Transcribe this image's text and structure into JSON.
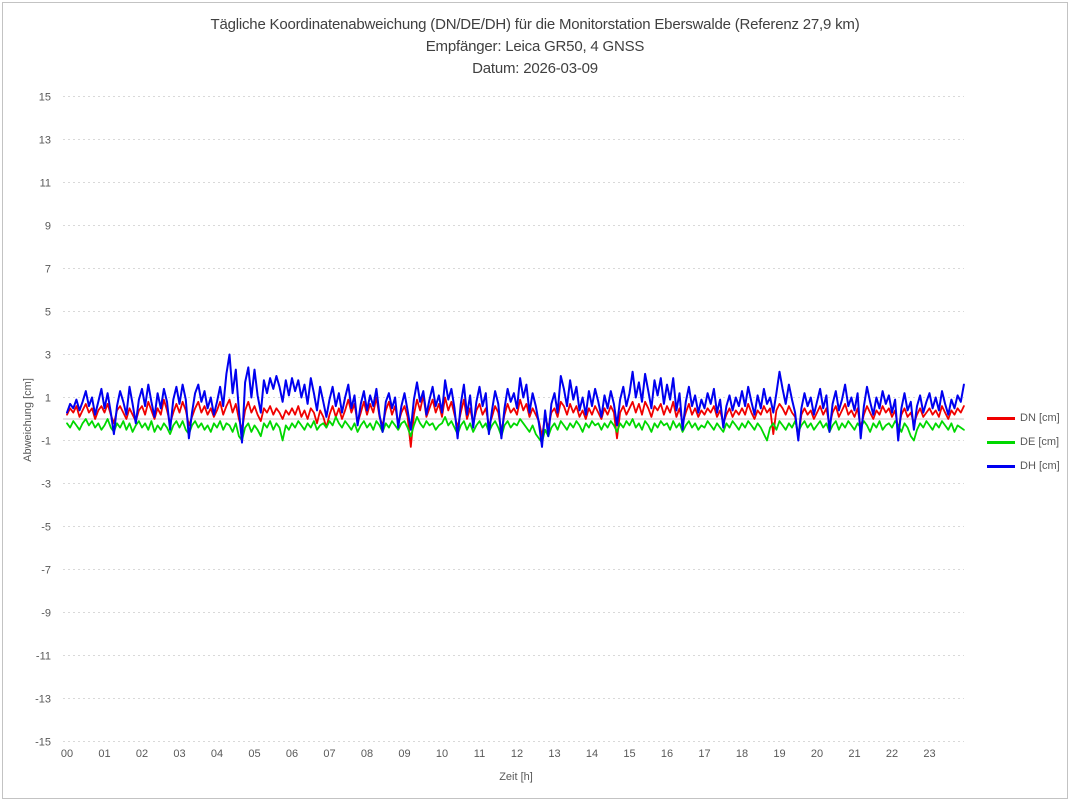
{
  "window": {
    "background": "#ffffff",
    "border_color": "#c3c3c3"
  },
  "colors": {
    "grid": "#d9d9d9",
    "zero_line": "#c9c9c9",
    "tick_text": "#595959",
    "title_text": "#404040"
  },
  "chart_data": {
    "type": "line",
    "title": "Tägliche Koordinatenabweichung (DN/DE/DH) für die Monitorstation Eberswalde (Referenz 27,9 km)",
    "subtitle": "Empfänger: Leica GR50, 4 GNSS",
    "date_line": "Datum: 2026-03-09",
    "xlabel": "Zeit [h]",
    "ylabel": "Abweichung [cm]",
    "xlim": [
      0,
      24
    ],
    "ylim": [
      -15,
      15
    ],
    "y_ticks": [
      15,
      13,
      11,
      9,
      7,
      5,
      3,
      1,
      -1,
      -3,
      -5,
      -7,
      -9,
      -11,
      -13,
      -15
    ],
    "x_ticks": [
      "00",
      "01",
      "02",
      "03",
      "04",
      "05",
      "06",
      "07",
      "08",
      "09",
      "10",
      "11",
      "12",
      "13",
      "14",
      "15",
      "16",
      "17",
      "18",
      "19",
      "20",
      "21",
      "22",
      "23"
    ],
    "grid": "horizontal dashed light-gray lines at odd values, solid light-gray line at 0, no vertical gridlines",
    "legend_position": "right-center, no border",
    "sample_interval_minutes": 5,
    "x_start_hour": 0,
    "series": [
      {
        "id": "dn",
        "name": "DN [cm]",
        "color": "#f00000",
        "width": 1.8,
        "values": [
          0.2,
          0.5,
          0.3,
          0.6,
          0.1,
          0.4,
          0.7,
          0.3,
          0.5,
          0.0,
          0.4,
          0.6,
          0.3,
          0.7,
          0.2,
          -0.2,
          0.4,
          0.6,
          0.3,
          0.0,
          0.5,
          0.2,
          -0.1,
          0.4,
          0.6,
          0.2,
          0.8,
          0.4,
          0.0,
          0.5,
          0.2,
          0.9,
          0.4,
          -0.2,
          0.3,
          0.7,
          0.3,
          0.8,
          0.4,
          -0.3,
          0.1,
          0.5,
          0.8,
          0.3,
          0.6,
          0.2,
          0.5,
          0.1,
          0.4,
          0.8,
          0.2,
          0.6,
          0.9,
          0.3,
          0.7,
          0.0,
          -0.5,
          0.4,
          0.8,
          0.3,
          0.6,
          0.2,
          -0.1,
          0.5,
          0.3,
          0.6,
          0.2,
          0.5,
          0.3,
          0.0,
          0.4,
          0.2,
          0.5,
          0.2,
          0.6,
          0.1,
          0.4,
          0.0,
          0.5,
          0.3,
          -0.2,
          0.4,
          0.1,
          -0.4,
          0.2,
          0.6,
          0.1,
          0.5,
          0.0,
          0.4,
          0.9,
          0.3,
          0.7,
          -0.2,
          0.3,
          0.8,
          0.2,
          0.7,
          0.3,
          1.0,
          0.1,
          -0.3,
          0.4,
          0.8,
          0.2,
          0.6,
          -0.2,
          0.3,
          0.6,
          0.1,
          -1.3,
          0.2,
          0.9,
          0.4,
          1.1,
          0.1,
          0.5,
          0.9,
          0.3,
          0.7,
          0.1,
          1.0,
          0.4,
          0.8,
          0.2,
          -0.4,
          0.3,
          0.9,
          0.0,
          0.5,
          -0.2,
          0.4,
          0.7,
          0.2,
          0.5,
          -0.3,
          0.1,
          0.6,
          0.3,
          -0.6,
          0.2,
          0.7,
          0.3,
          0.5,
          0.2,
          0.9,
          0.4,
          0.7,
          0.1,
          0.5,
          0.2,
          -0.1,
          -0.8,
          0.1,
          -0.4,
          0.3,
          0.5,
          0.1,
          0.8,
          0.6,
          0.2,
          0.7,
          0.3,
          0.6,
          0.1,
          0.4,
          0.0,
          0.5,
          0.2,
          0.6,
          0.3,
          0.0,
          0.5,
          0.2,
          0.6,
          0.3,
          -0.9,
          0.3,
          0.6,
          0.2,
          0.5,
          0.8,
          0.3,
          0.7,
          0.2,
          0.8,
          0.5,
          0.1,
          0.6,
          0.4,
          0.7,
          0.2,
          0.6,
          0.3,
          0.8,
          0.1,
          0.5,
          -0.2,
          0.3,
          0.7,
          0.2,
          0.5,
          0.1,
          0.4,
          0.2,
          0.5,
          0.3,
          0.6,
          0.1,
          0.4,
          -0.2,
          0.2,
          0.5,
          0.1,
          0.4,
          0.2,
          0.5,
          0.2,
          0.7,
          0.3,
          0.0,
          0.4,
          0.2,
          0.6,
          0.3,
          0.5,
          -0.7,
          0.4,
          0.7,
          0.5,
          0.2,
          0.6,
          0.3,
          0.1,
          -0.9,
          0.2,
          0.5,
          0.2,
          0.4,
          0.0,
          0.3,
          0.6,
          0.2,
          0.5,
          -0.3,
          0.3,
          0.6,
          0.1,
          0.4,
          0.7,
          0.2,
          0.4,
          0.1,
          0.5,
          -0.4,
          0.2,
          0.6,
          0.3,
          0.0,
          0.4,
          0.2,
          0.6,
          0.3,
          0.5,
          0.1,
          0.4,
          -0.5,
          0.2,
          0.5,
          0.1,
          0.3,
          -0.2,
          0.2,
          0.5,
          0.1,
          0.3,
          0.5,
          0.2,
          0.4,
          0.1,
          0.6,
          0.3,
          0.0,
          0.4,
          0.2,
          0.5,
          0.3,
          0.6
        ]
      },
      {
        "id": "de",
        "name": "DE [cm]",
        "color": "#00d800",
        "width": 1.8,
        "values": [
          -0.2,
          -0.4,
          -0.1,
          -0.3,
          -0.5,
          -0.2,
          0.0,
          -0.3,
          -0.1,
          -0.4,
          -0.2,
          -0.5,
          -0.3,
          0.0,
          -0.4,
          -0.6,
          -0.2,
          -0.4,
          -0.1,
          -0.5,
          -0.2,
          -0.6,
          -0.3,
          -0.1,
          -0.4,
          -0.2,
          -0.5,
          -0.1,
          -0.6,
          -0.3,
          -0.5,
          -0.2,
          -0.4,
          -0.7,
          -0.3,
          -0.1,
          -0.4,
          -0.1,
          -0.5,
          -0.7,
          -0.3,
          -0.1,
          -0.4,
          -0.2,
          -0.5,
          -0.3,
          -0.6,
          -0.2,
          -0.4,
          -0.1,
          -0.5,
          -0.2,
          -0.3,
          -0.6,
          -0.2,
          -0.8,
          -1.0,
          -0.4,
          -0.2,
          -0.6,
          -0.3,
          -0.5,
          -0.8,
          -0.2,
          -0.4,
          -0.1,
          -0.5,
          -0.2,
          -0.4,
          -1.0,
          -0.3,
          -0.5,
          -0.2,
          -0.4,
          -0.1,
          -0.3,
          -0.5,
          -0.2,
          -0.4,
          -0.1,
          -0.5,
          -0.3,
          -0.2,
          -0.4,
          -0.1,
          -0.3,
          0.1,
          -0.2,
          -0.4,
          -0.1,
          -0.3,
          -0.5,
          -0.2,
          -0.6,
          -0.3,
          -0.1,
          -0.4,
          -0.2,
          -0.5,
          -0.1,
          -0.3,
          -0.6,
          -0.2,
          -0.4,
          -0.1,
          -0.3,
          -0.5,
          -0.2,
          -0.1,
          -0.4,
          -0.8,
          -0.3,
          0.1,
          -0.2,
          -0.4,
          -0.1,
          -0.3,
          -0.2,
          -0.5,
          -0.3,
          -0.2,
          0.1,
          -0.3,
          -0.1,
          -0.4,
          -0.7,
          -0.3,
          -0.1,
          -0.5,
          -0.2,
          -0.6,
          -0.3,
          -0.1,
          -0.4,
          -0.2,
          -0.6,
          -0.3,
          -0.1,
          -0.4,
          -0.8,
          -0.3,
          -0.1,
          -0.4,
          -0.2,
          -0.3,
          0.0,
          -0.2,
          -0.4,
          -0.6,
          -0.3,
          -0.7,
          -0.9,
          -1.1,
          -0.5,
          -0.8,
          -0.4,
          -0.2,
          -0.5,
          -0.1,
          -0.3,
          -0.5,
          -0.2,
          -0.4,
          -0.1,
          -0.3,
          -0.6,
          -0.2,
          -0.4,
          -0.1,
          -0.3,
          -0.2,
          -0.5,
          -0.2,
          -0.4,
          -0.1,
          -0.3,
          -0.6,
          -0.2,
          -0.4,
          -0.1,
          -0.3,
          0.0,
          -0.4,
          -0.2,
          -0.5,
          -0.1,
          -0.3,
          -0.6,
          -0.2,
          -0.4,
          -0.1,
          -0.3,
          -0.2,
          -0.5,
          -0.1,
          -0.4,
          -0.2,
          -0.6,
          -0.3,
          -0.1,
          -0.4,
          -0.2,
          -0.5,
          -0.3,
          -0.4,
          -0.1,
          -0.3,
          -0.5,
          -0.2,
          -0.4,
          -0.6,
          -0.2,
          -0.4,
          -0.1,
          -0.3,
          -0.5,
          -0.2,
          -0.4,
          -0.1,
          -0.3,
          -0.5,
          -0.2,
          -0.4,
          -0.7,
          -1.0,
          -0.4,
          -0.2,
          -0.5,
          -0.1,
          -0.3,
          -0.5,
          -0.2,
          -0.4,
          -0.1,
          -0.6,
          -0.3,
          -0.1,
          -0.4,
          -0.2,
          -0.5,
          -0.3,
          -0.1,
          -0.4,
          -0.2,
          -0.6,
          -0.3,
          -0.1,
          -0.5,
          -0.2,
          -0.4,
          -0.1,
          -0.3,
          -0.5,
          -0.2,
          -0.4,
          -0.1,
          -0.3,
          -0.6,
          -0.2,
          -0.4,
          -0.1,
          -0.5,
          -0.3,
          -0.2,
          -0.4,
          -0.1,
          -0.3,
          -0.6,
          -0.2,
          -0.4,
          -0.8,
          -1.0,
          -0.5,
          -0.2,
          -0.4,
          -0.1,
          -0.3,
          -0.5,
          -0.2,
          -0.4,
          -0.1,
          -0.3,
          -0.5,
          -0.2,
          -0.6,
          -0.3,
          -0.4,
          -0.5
        ]
      },
      {
        "id": "dh",
        "name": "DH [cm]",
        "color": "#0000f0",
        "width": 2,
        "values": [
          0.3,
          0.7,
          0.5,
          0.9,
          0.4,
          0.8,
          1.3,
          0.6,
          1.0,
          0.2,
          0.8,
          1.4,
          0.5,
          1.2,
          0.3,
          -0.7,
          0.6,
          1.3,
          0.8,
          0.2,
          1.5,
          0.7,
          -0.2,
          0.9,
          1.4,
          0.6,
          1.6,
          0.8,
          0.1,
          1.2,
          0.5,
          1.4,
          0.8,
          -0.5,
          0.9,
          1.5,
          0.7,
          1.6,
          0.9,
          -0.9,
          0.3,
          1.2,
          1.6,
          0.8,
          1.3,
          0.5,
          1.0,
          0.2,
          0.8,
          1.5,
          0.6,
          2.1,
          3.0,
          1.2,
          2.3,
          0.4,
          -1.1,
          1.7,
          2.4,
          1.0,
          2.3,
          1.1,
          0.3,
          1.8,
          1.2,
          1.9,
          1.4,
          2.0,
          1.5,
          0.8,
          1.8,
          1.1,
          1.9,
          1.3,
          1.8,
          1.0,
          1.6,
          0.7,
          1.9,
          1.2,
          0.4,
          1.5,
          0.8,
          0.1,
          0.9,
          1.5,
          0.6,
          1.2,
          0.3,
          1.0,
          1.6,
          0.5,
          1.1,
          -0.3,
          0.7,
          1.3,
          0.4,
          1.1,
          0.6,
          1.4,
          0.2,
          -0.6,
          0.8,
          1.2,
          0.5,
          1.0,
          -0.4,
          0.6,
          1.2,
          0.4,
          -0.5,
          0.9,
          1.7,
          0.8,
          1.3,
          0.2,
          0.9,
          1.5,
          0.6,
          1.1,
          0.3,
          1.8,
          0.9,
          1.4,
          0.5,
          -0.9,
          0.7,
          1.6,
          0.2,
          1.1,
          -0.4,
          0.8,
          1.5,
          0.6,
          1.2,
          -0.7,
          0.4,
          1.3,
          0.7,
          -0.9,
          0.5,
          1.4,
          0.8,
          1.2,
          0.5,
          1.9,
          1.0,
          1.6,
          0.3,
          1.2,
          0.6,
          -0.2,
          -1.3,
          0.4,
          -0.8,
          0.7,
          1.2,
          0.3,
          2.0,
          1.4,
          0.6,
          1.8,
          0.9,
          1.5,
          0.4,
          1.0,
          0.2,
          1.3,
          0.6,
          1.4,
          0.8,
          0.1,
          1.1,
          0.5,
          1.3,
          0.7,
          -0.3,
          0.9,
          1.5,
          0.6,
          1.2,
          2.2,
          1.0,
          1.7,
          0.8,
          2.1,
          1.3,
          0.5,
          1.8,
          1.1,
          1.9,
          0.7,
          1.6,
          0.9,
          1.9,
          0.4,
          1.2,
          -0.5,
          0.8,
          1.5,
          0.6,
          1.1,
          0.3,
          0.9,
          0.5,
          1.2,
          0.7,
          1.4,
          0.3,
          0.9,
          -0.4,
          0.6,
          1.1,
          0.4,
          1.0,
          0.6,
          1.3,
          0.6,
          1.5,
          0.8,
          0.2,
          1.1,
          0.5,
          1.4,
          0.7,
          1.0,
          0.3,
          1.2,
          2.2,
          1.4,
          0.7,
          1.6,
          0.9,
          0.3,
          -1.0,
          0.5,
          1.2,
          0.6,
          1.0,
          0.2,
          0.8,
          1.4,
          0.5,
          1.1,
          -0.6,
          0.7,
          1.3,
          0.4,
          0.9,
          1.6,
          0.6,
          1.0,
          0.4,
          1.2,
          -0.9,
          0.6,
          1.5,
          0.8,
          0.2,
          1.0,
          0.5,
          1.3,
          0.7,
          1.1,
          0.3,
          0.9,
          -1.0,
          0.5,
          1.2,
          0.4,
          0.8,
          -0.5,
          0.6,
          1.1,
          0.3,
          0.8,
          1.2,
          0.5,
          1.0,
          0.4,
          1.3,
          0.7,
          0.2,
          0.9,
          0.5,
          1.1,
          0.8,
          1.6
        ]
      }
    ]
  }
}
